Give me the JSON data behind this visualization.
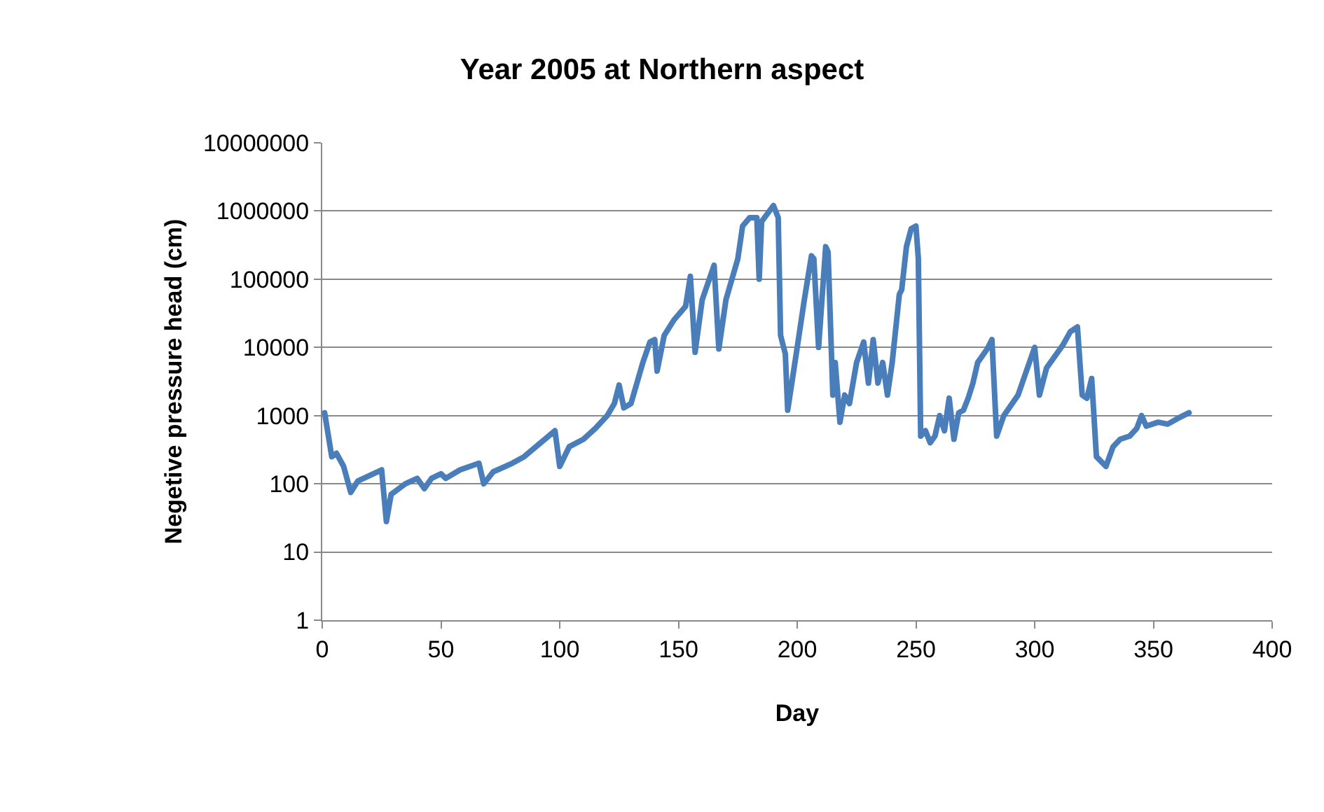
{
  "chart_data": {
    "type": "line",
    "title": "Year 2005 at Northern aspect",
    "xlabel": "Day",
    "ylabel": "Negetive pressure head (cm)",
    "log": "y",
    "grid": "y",
    "marker": "none",
    "line_style": "solid",
    "xlim": [
      0,
      400
    ],
    "xticks": [
      0,
      50,
      100,
      150,
      200,
      250,
      300,
      350,
      400
    ],
    "ylim": [
      1,
      10000000
    ],
    "yticks": [
      1,
      10,
      100,
      1000,
      10000,
      100000,
      1000000,
      10000000
    ],
    "series": [
      {
        "color": "#4a7ebb",
        "x": [
          1,
          4,
          6,
          9,
          12,
          15,
          25,
          27,
          29,
          35,
          40,
          43,
          46,
          50,
          52,
          58,
          66,
          68,
          72,
          80,
          85,
          90,
          98,
          100,
          104,
          110,
          115,
          120,
          123,
          125,
          127,
          130,
          135,
          138,
          140,
          141,
          144,
          148,
          153,
          155,
          157,
          160,
          165,
          167,
          170,
          175,
          177,
          180,
          183,
          184,
          185,
          190,
          192,
          193,
          195,
          196,
          200,
          203,
          206,
          207,
          209,
          212,
          213,
          215,
          216,
          218,
          220,
          222,
          225,
          228,
          230,
          232,
          234,
          236,
          238,
          240,
          243,
          244,
          246,
          248,
          250,
          251,
          252,
          254,
          256,
          258,
          260,
          262,
          264,
          266,
          268,
          270,
          272,
          274,
          276,
          280,
          282,
          284,
          287,
          293,
          296,
          300,
          302,
          305,
          308,
          312,
          315,
          318,
          320,
          322,
          324,
          326,
          330,
          333,
          336,
          340,
          343,
          345,
          347,
          352,
          356,
          360,
          365
        ],
        "values": [
          1100,
          250,
          280,
          180,
          75,
          110,
          160,
          28,
          70,
          100,
          120,
          85,
          120,
          140,
          120,
          160,
          200,
          100,
          150,
          200,
          250,
          350,
          600,
          180,
          350,
          450,
          650,
          1000,
          1500,
          2800,
          1300,
          1500,
          6000,
          12000,
          13000,
          4500,
          15000,
          25000,
          40000,
          110000,
          8500,
          50000,
          160000,
          9500,
          50000,
          200000,
          600000,
          800000,
          800000,
          100000,
          700000,
          1200000,
          800000,
          15000,
          8000,
          1200,
          10000,
          50000,
          220000,
          200000,
          10000,
          300000,
          250000,
          2000,
          6000,
          800,
          2000,
          1500,
          6000,
          12000,
          3000,
          13000,
          3000,
          6000,
          2000,
          6000,
          60000,
          70000,
          300000,
          550000,
          600000,
          200000,
          500,
          600,
          400,
          500,
          1000,
          600,
          1800,
          450,
          1100,
          1200,
          1800,
          3000,
          6000,
          9500,
          13000,
          500,
          1000,
          2000,
          4000,
          10000,
          2000,
          5000,
          7000,
          11000,
          17000,
          20000,
          2000,
          1800,
          3500,
          250,
          180,
          350,
          450,
          500,
          650,
          1000,
          700,
          800,
          750,
          900,
          1100
        ]
      }
    ]
  }
}
